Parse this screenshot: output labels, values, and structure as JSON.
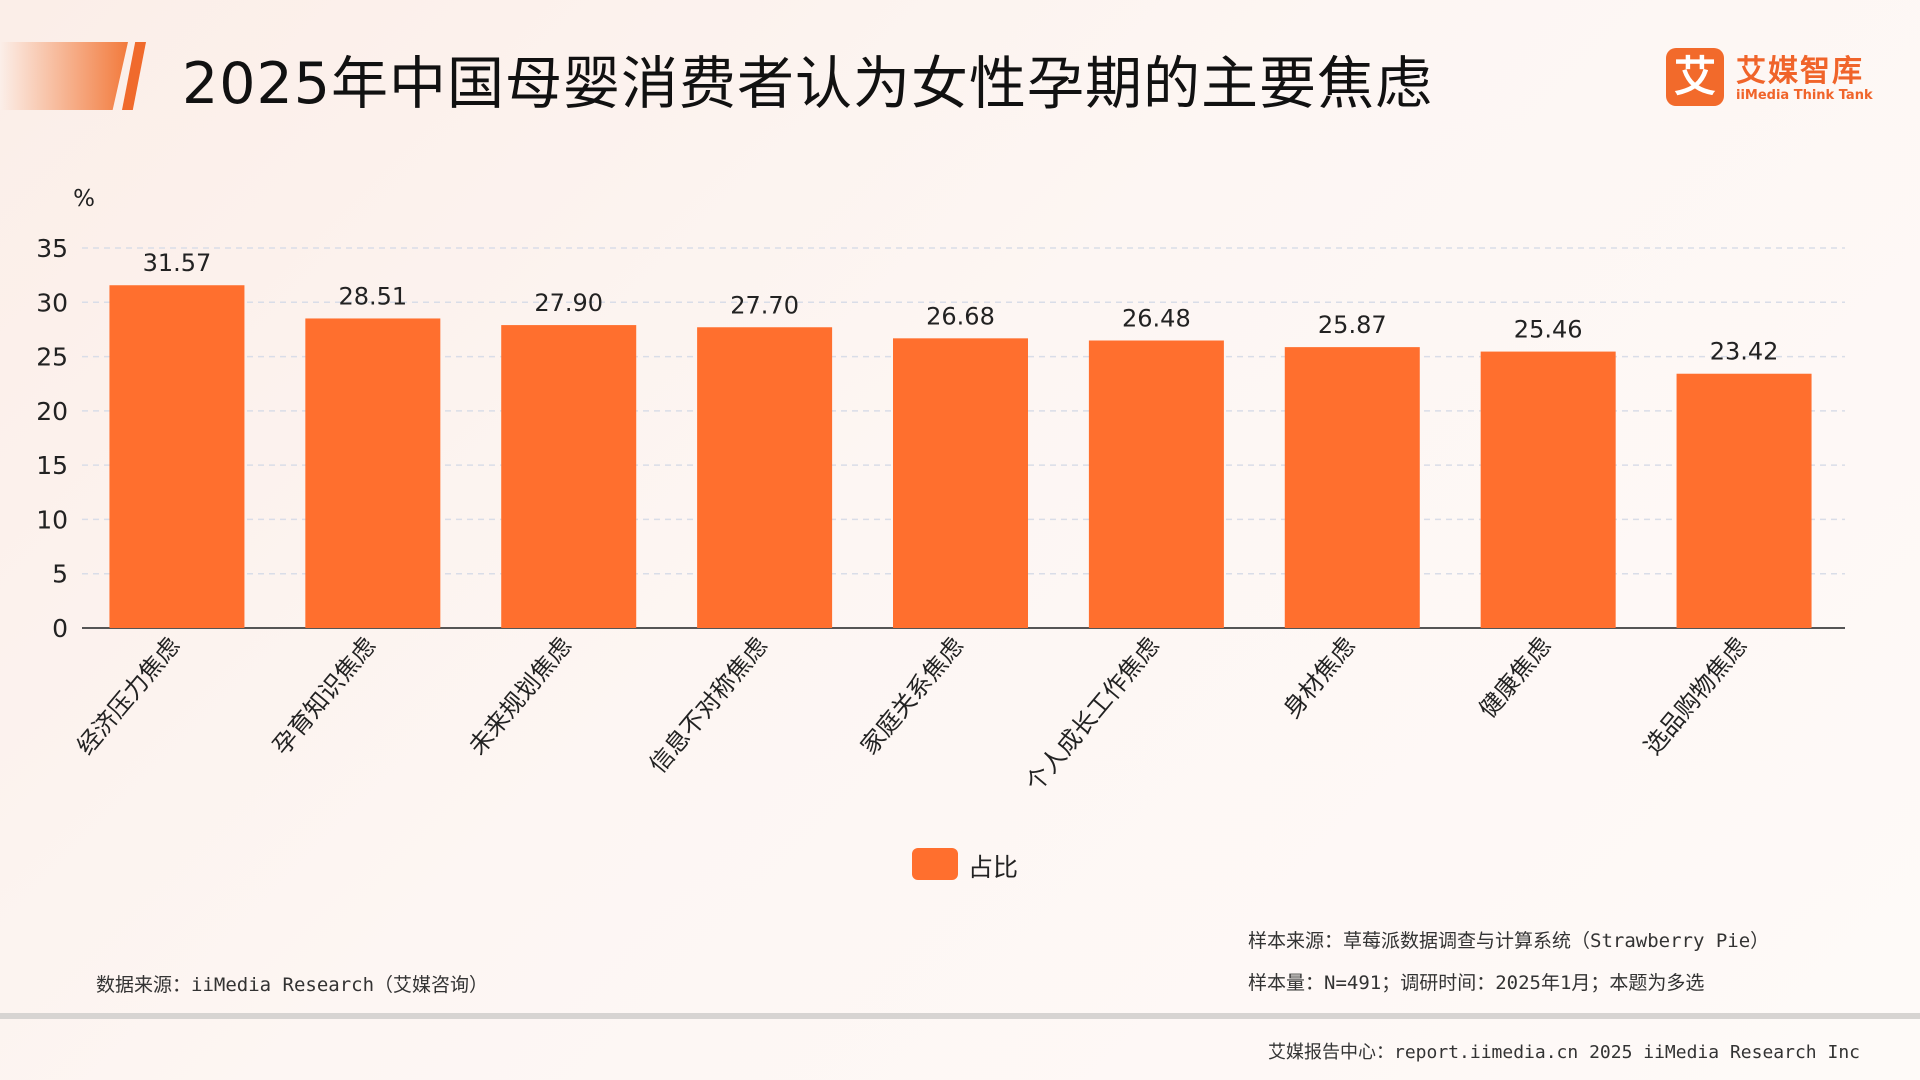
{
  "header": {
    "title": "2025年中国母婴消费者认为女性孕期的主要焦虑",
    "logo_mark": "艾",
    "logo_name": "艾媒智库",
    "logo_sub": "iiMedia Think Tank"
  },
  "chart_data": {
    "type": "bar",
    "unit_label": "%",
    "categories": [
      "经济压力焦虑",
      "孕育知识焦虑",
      "未来规划焦虑",
      "信息不对称焦虑",
      "家庭关系焦虑",
      "个人成长工作焦虑",
      "身材焦虑",
      "健康焦虑",
      "选品购物焦虑"
    ],
    "series": [
      {
        "name": "占比",
        "values": [
          31.57,
          28.51,
          27.9,
          27.7,
          26.68,
          26.48,
          25.87,
          25.46,
          23.42
        ]
      }
    ],
    "value_labels": [
      "31.57",
      "28.51",
      "27.90",
      "27.70",
      "26.68",
      "26.48",
      "25.87",
      "25.46",
      "23.42"
    ],
    "ylim": [
      0,
      35
    ],
    "yticks": [
      0,
      5,
      10,
      15,
      20,
      25,
      30,
      35
    ],
    "grid": true,
    "legend_position": "bottom-center",
    "bar_color": "#ff6f2e"
  },
  "legend": {
    "label": "占比"
  },
  "notes": {
    "source": "数据来源：iiMedia Research（艾媒咨询）",
    "sample_source": "样本来源：草莓派数据调查与计算系统（Strawberry Pie）",
    "sample_size": "样本量：N=491；调研时间：2025年1月；本题为多选"
  },
  "footer": {
    "text": "艾媒报告中心：report.iimedia.cn   2025 iiMedia Research Inc"
  }
}
